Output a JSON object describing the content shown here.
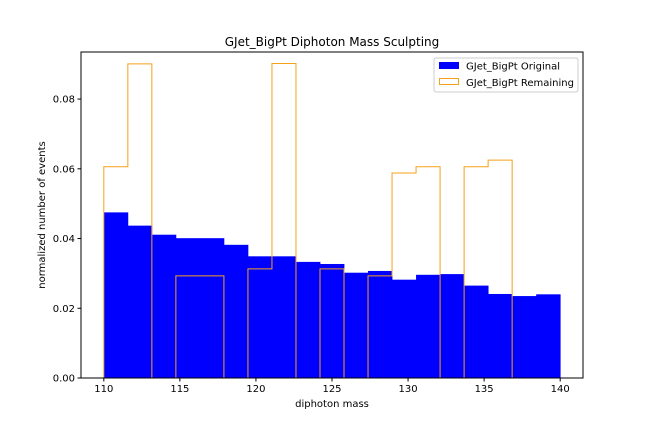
{
  "chart_data": {
    "type": "bar",
    "title": "GJet_BigPt Diphoton Mass Sculpting",
    "xlabel": "diphoton mass",
    "ylabel": "normalized number of events",
    "xlim": [
      108.5,
      141.5
    ],
    "ylim": [
      0,
      0.0935
    ],
    "xticks": [
      110,
      115,
      120,
      125,
      130,
      135,
      140
    ],
    "yticks": [
      0.0,
      0.02,
      0.04,
      0.06,
      0.08
    ],
    "ytick_labels": [
      "0.00",
      "0.02",
      "0.04",
      "0.06",
      "0.08"
    ],
    "legend_position": "top-right",
    "bin_edges": [
      110,
      111.579,
      113.158,
      114.737,
      116.316,
      117.895,
      119.474,
      121.053,
      122.632,
      124.211,
      125.789,
      127.368,
      128.947,
      130.526,
      132.105,
      133.684,
      135.263,
      136.842,
      138.421,
      140
    ],
    "series": [
      {
        "name": "GJet_BigPt Original",
        "style": "filled",
        "color": "#0000ff",
        "values": [
          0.0475,
          0.0437,
          0.0411,
          0.0401,
          0.0401,
          0.0382,
          0.0349,
          0.0349,
          0.0333,
          0.0327,
          0.0302,
          0.0307,
          0.0282,
          0.0296,
          0.0298,
          0.0265,
          0.0241,
          0.0235,
          0.024
        ]
      },
      {
        "name": "GJet_BigPt Remaining",
        "style": "step",
        "color": "#f5a01a",
        "values": [
          0.0606,
          0.0901,
          0.0,
          0.0293,
          0.0293,
          0.0,
          0.0313,
          0.0902,
          0.0,
          0.0313,
          0.0,
          0.0293,
          0.0588,
          0.0606,
          0.0,
          0.0606,
          0.0625,
          0.0,
          0.0
        ]
      }
    ]
  }
}
